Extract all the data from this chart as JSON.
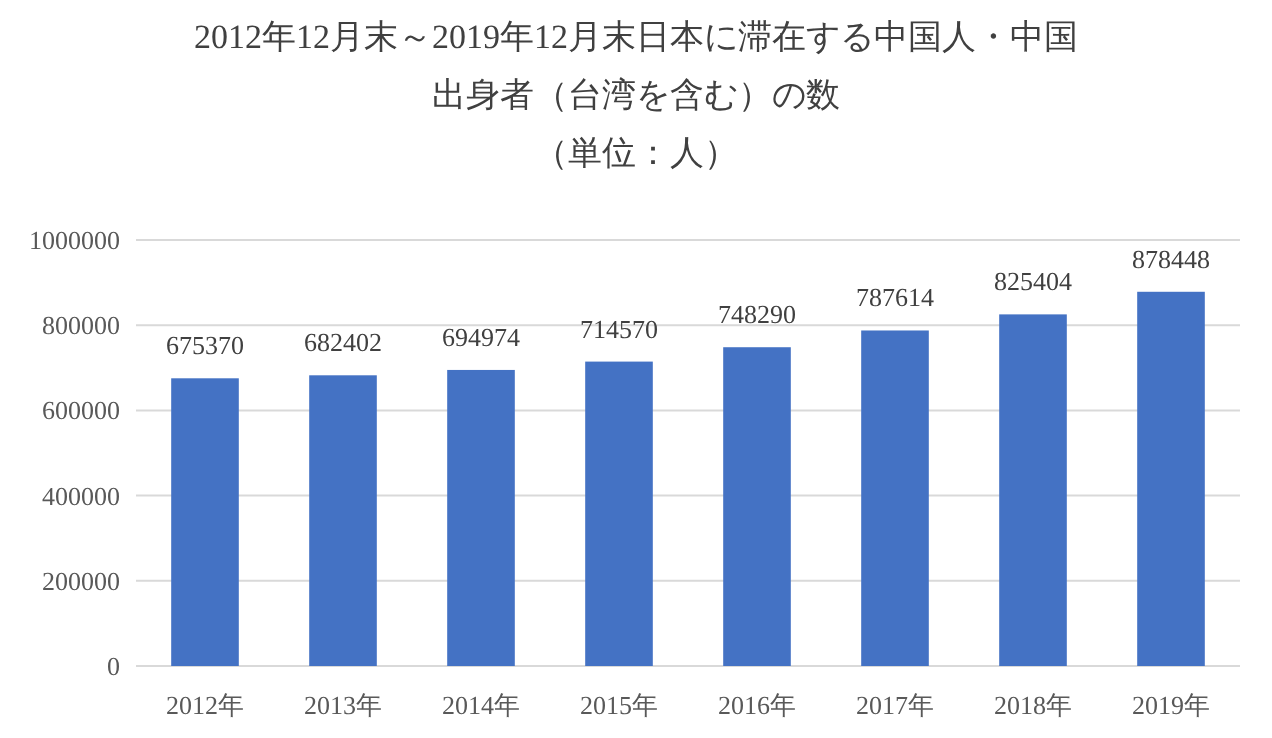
{
  "chart_data": {
    "type": "bar",
    "title": "2012年12月末～2019年12月末日本に滞在する中国人・中国出身者（台湾を含む）の数",
    "subtitle": "（単位：人）",
    "categories": [
      "2012年",
      "2013年",
      "2014年",
      "2015年",
      "2016年",
      "2017年",
      "2018年",
      "2019年"
    ],
    "values": [
      675370,
      682402,
      694974,
      714570,
      748290,
      787614,
      825404,
      878448
    ],
    "color": "#4472c4",
    "ylim": [
      0,
      1000000
    ],
    "yticks": [
      0,
      200000,
      400000,
      600000,
      800000,
      1000000
    ],
    "grid": "y",
    "data_labels": true
  }
}
